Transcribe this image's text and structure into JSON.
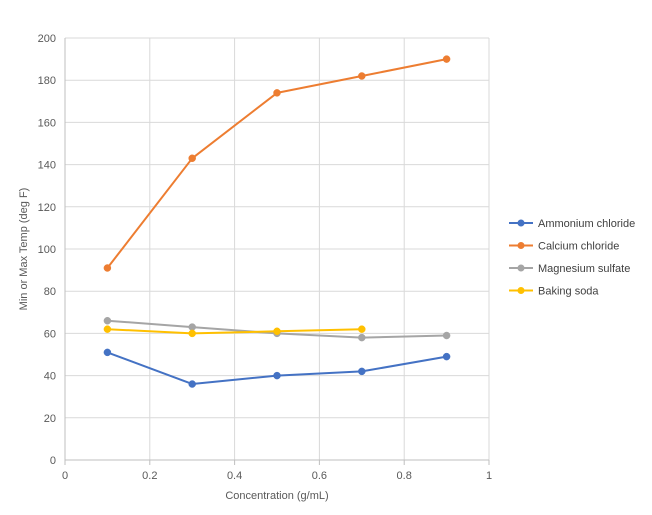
{
  "chart_data": {
    "type": "scatter",
    "title": "",
    "xlabel": "Concentration (g/mL)",
    "ylabel": "Min or Max Temp (deg F)",
    "xlim": [
      0,
      1
    ],
    "ylim": [
      0,
      200
    ],
    "x_ticks": [
      0,
      0.2,
      0.4,
      0.6,
      0.8,
      1
    ],
    "x_tick_labels": [
      "0",
      "0.2",
      "0.4",
      "0.6",
      "0.8",
      "1"
    ],
    "y_ticks": [
      0,
      20,
      40,
      60,
      80,
      100,
      120,
      140,
      160,
      180,
      200
    ],
    "y_tick_labels": [
      "0",
      "20",
      "40",
      "60",
      "80",
      "100",
      "120",
      "140",
      "160",
      "180",
      "200"
    ],
    "grid": true,
    "legend_position": "right",
    "series": [
      {
        "name": "Ammonium chloride",
        "color": "#4472C4",
        "x": [
          0.1,
          0.3,
          0.5,
          0.7,
          0.9
        ],
        "y": [
          51,
          36,
          40,
          42,
          49
        ]
      },
      {
        "name": "Calcium chloride",
        "color": "#ED7D31",
        "x": [
          0.1,
          0.3,
          0.5,
          0.7,
          0.9
        ],
        "y": [
          91,
          143,
          174,
          182,
          190
        ]
      },
      {
        "name": "Magnesium sulfate",
        "color": "#A5A5A5",
        "x": [
          0.1,
          0.3,
          0.5,
          0.7,
          0.9
        ],
        "y": [
          66,
          63,
          60,
          58,
          59
        ]
      },
      {
        "name": "Baking soda",
        "color": "#FFC000",
        "x": [
          0.1,
          0.3,
          0.5,
          0.7
        ],
        "y": [
          62,
          60,
          61,
          62
        ]
      }
    ]
  }
}
